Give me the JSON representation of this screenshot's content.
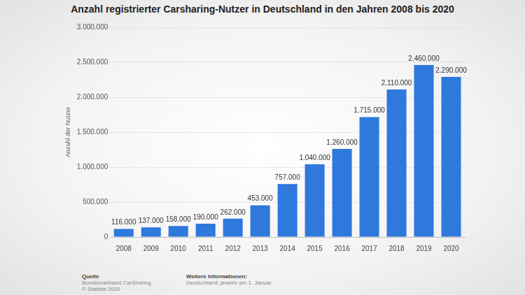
{
  "chart_data": {
    "type": "bar",
    "title": "Anzahl registrierter Carsharing-Nutzer in Deutschland in den Jahren 2008 bis 2020",
    "y_label": "Anzahl der Nutzer",
    "categories": [
      "2008",
      "2009",
      "2010",
      "2011",
      "2012",
      "2013",
      "2014",
      "2015",
      "2016",
      "2017",
      "2018",
      "2019",
      "2020"
    ],
    "values": [
      116000,
      137000,
      158000,
      190000,
      262000,
      453000,
      757000,
      1040000,
      1260000,
      1715000,
      2110000,
      2460000,
      2290000
    ],
    "value_labels": [
      "116.000",
      "137.000",
      "158.000",
      "190.000",
      "262.000",
      "453.000",
      "757.000",
      "1.040.000",
      "1.260.000",
      "1.715.000",
      "2.110.000",
      "2.460.000",
      "2.290.000"
    ],
    "data_labels": true,
    "color": "#2f78dc",
    "ylim": [
      0,
      3000000
    ],
    "yticks": [
      0,
      {
        "value": 500000,
        "label": "500.000"
      },
      {
        "value": 1000000,
        "label": "1.000.000"
      },
      {
        "value": 1500000,
        "label": "1.500.000"
      },
      {
        "value": 2000000,
        "label": "2.000.000"
      },
      {
        "value": 2500000,
        "label": "2.500.000"
      },
      {
        "value": 3000000,
        "label": "3.000.000"
      }
    ],
    "grid": true
  },
  "footer": {
    "source_heading": "Quelle",
    "source": [
      "Bundesverband CarSharing",
      "© Statista 2020"
    ],
    "info_heading": "Weitere Informationen:",
    "info": [
      "Deutschland; jeweils am 1. Januar"
    ]
  }
}
